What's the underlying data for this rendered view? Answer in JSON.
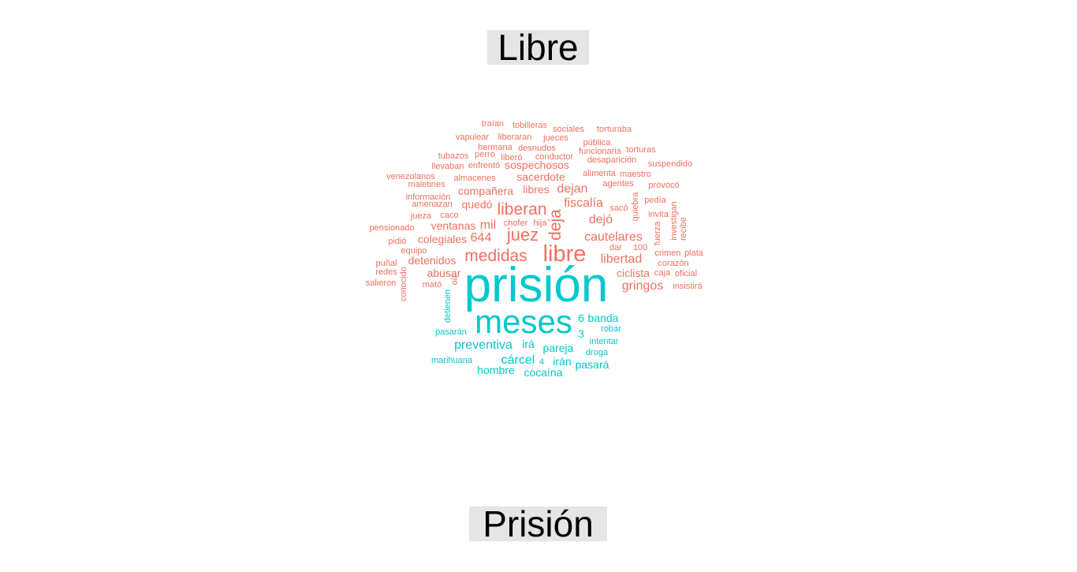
{
  "labels": {
    "top": "Libre",
    "bottom": "Prisión"
  },
  "colors": {
    "libre": "#F0705F",
    "prision": "#00C9CC",
    "label_bg": "#E5E5E5"
  },
  "chart_data": {
    "type": "wordcloud",
    "groups": [
      "Libre",
      "Prisión"
    ],
    "words": [
      {
        "word": "traían",
        "group": "Libre",
        "freq": 1
      },
      {
        "word": "tobilleras",
        "group": "Libre",
        "freq": 1
      },
      {
        "word": "sociales",
        "group": "Libre",
        "freq": 1
      },
      {
        "word": "torturaba",
        "group": "Libre",
        "freq": 1
      },
      {
        "word": "vapulear",
        "group": "Libre",
        "freq": 1
      },
      {
        "word": "liberaran",
        "group": "Libre",
        "freq": 1
      },
      {
        "word": "jueces",
        "group": "Libre",
        "freq": 1
      },
      {
        "word": "pública",
        "group": "Libre",
        "freq": 1
      },
      {
        "word": "hermana",
        "group": "Libre",
        "freq": 1
      },
      {
        "word": "desnudos",
        "group": "Libre",
        "freq": 1
      },
      {
        "word": "funcionaria",
        "group": "Libre",
        "freq": 1
      },
      {
        "word": "torturas",
        "group": "Libre",
        "freq": 1
      },
      {
        "word": "tubazos",
        "group": "Libre",
        "freq": 1
      },
      {
        "word": "perro",
        "group": "Libre",
        "freq": 1
      },
      {
        "word": "liberó",
        "group": "Libre",
        "freq": 1
      },
      {
        "word": "conductor",
        "group": "Libre",
        "freq": 1
      },
      {
        "word": "desaparición",
        "group": "Libre",
        "freq": 1
      },
      {
        "word": "llevaban",
        "group": "Libre",
        "freq": 1
      },
      {
        "word": "enfrentó",
        "group": "Libre",
        "freq": 1
      },
      {
        "word": "sospechosos",
        "group": "Libre",
        "freq": 2
      },
      {
        "word": "suspendido",
        "group": "Libre",
        "freq": 1
      },
      {
        "word": "venezolanos",
        "group": "Libre",
        "freq": 1
      },
      {
        "word": "almacenes",
        "group": "Libre",
        "freq": 1
      },
      {
        "word": "sacerdote",
        "group": "Libre",
        "freq": 2
      },
      {
        "word": "alimenta",
        "group": "Libre",
        "freq": 1
      },
      {
        "word": "maestro",
        "group": "Libre",
        "freq": 1
      },
      {
        "word": "maletines",
        "group": "Libre",
        "freq": 1
      },
      {
        "word": "agentes",
        "group": "Libre",
        "freq": 1
      },
      {
        "word": "provocó",
        "group": "Libre",
        "freq": 1
      },
      {
        "word": "información",
        "group": "Libre",
        "freq": 1
      },
      {
        "word": "compañera",
        "group": "Libre",
        "freq": 2
      },
      {
        "word": "libres",
        "group": "Libre",
        "freq": 2
      },
      {
        "word": "dejan",
        "group": "Libre",
        "freq": 3
      },
      {
        "word": "quiebra",
        "group": "Libre",
        "freq": 1
      },
      {
        "word": "pedía",
        "group": "Libre",
        "freq": 1
      },
      {
        "word": "amenazan",
        "group": "Libre",
        "freq": 1
      },
      {
        "word": "quedó",
        "group": "Libre",
        "freq": 2
      },
      {
        "word": "liberan",
        "group": "Libre",
        "freq": 4
      },
      {
        "word": "fiscalía",
        "group": "Libre",
        "freq": 3
      },
      {
        "word": "sacó",
        "group": "Libre",
        "freq": 1
      },
      {
        "word": "invita",
        "group": "Libre",
        "freq": 1
      },
      {
        "word": "investigan",
        "group": "Libre",
        "freq": 1
      },
      {
        "word": "jueza",
        "group": "Libre",
        "freq": 1
      },
      {
        "word": "caco",
        "group": "Libre",
        "freq": 1
      },
      {
        "word": "deja",
        "group": "Libre",
        "freq": 4
      },
      {
        "word": "dejó",
        "group": "Libre",
        "freq": 3
      },
      {
        "word": "chofer",
        "group": "Libre",
        "freq": 1
      },
      {
        "word": "hija",
        "group": "Libre",
        "freq": 1
      },
      {
        "word": "fuerza",
        "group": "Libre",
        "freq": 1
      },
      {
        "word": "recibe",
        "group": "Libre",
        "freq": 1
      },
      {
        "word": "pensionado",
        "group": "Libre",
        "freq": 1
      },
      {
        "word": "ventanas",
        "group": "Libre",
        "freq": 2
      },
      {
        "word": "mil",
        "group": "Libre",
        "freq": 3
      },
      {
        "word": "juez",
        "group": "Libre",
        "freq": 5
      },
      {
        "word": "cautelares",
        "group": "Libre",
        "freq": 3
      },
      {
        "word": "pidió",
        "group": "Libre",
        "freq": 1
      },
      {
        "word": "colegiales",
        "group": "Libre",
        "freq": 2
      },
      {
        "word": "644",
        "group": "Libre",
        "freq": 3
      },
      {
        "word": "libre",
        "group": "Libre",
        "freq": 6
      },
      {
        "word": "dar",
        "group": "Libre",
        "freq": 1
      },
      {
        "word": "100",
        "group": "Libre",
        "freq": 1
      },
      {
        "word": "crimen",
        "group": "Libre",
        "freq": 1
      },
      {
        "word": "plata",
        "group": "Libre",
        "freq": 1
      },
      {
        "word": "equipo",
        "group": "Libre",
        "freq": 1
      },
      {
        "word": "medidas",
        "group": "Libre",
        "freq": 4
      },
      {
        "word": "libertad",
        "group": "Libre",
        "freq": 3
      },
      {
        "word": "puñal",
        "group": "Libre",
        "freq": 1
      },
      {
        "word": "detenidos",
        "group": "Libre",
        "freq": 2
      },
      {
        "word": "corazón",
        "group": "Libre",
        "freq": 1
      },
      {
        "word": "redes",
        "group": "Libre",
        "freq": 1
      },
      {
        "word": "abusar",
        "group": "Libre",
        "freq": 2
      },
      {
        "word": "ciclista",
        "group": "Libre",
        "freq": 2
      },
      {
        "word": "caja",
        "group": "Libre",
        "freq": 1
      },
      {
        "word": "oficial",
        "group": "Libre",
        "freq": 1
      },
      {
        "word": "salieron",
        "group": "Libre",
        "freq": 1
      },
      {
        "word": "conocido",
        "group": "Libre",
        "freq": 1
      },
      {
        "word": "oír",
        "group": "Libre",
        "freq": 1
      },
      {
        "word": "mató",
        "group": "Libre",
        "freq": 1
      },
      {
        "word": "gringos",
        "group": "Libre",
        "freq": 3
      },
      {
        "word": "insistirá",
        "group": "Libre",
        "freq": 1
      },
      {
        "word": "prisión",
        "group": "Prisión",
        "freq": 10
      },
      {
        "word": "meses",
        "group": "Prisión",
        "freq": 7
      },
      {
        "word": "detienen",
        "group": "Prisión",
        "freq": 1
      },
      {
        "word": "6",
        "group": "Prisión",
        "freq": 2
      },
      {
        "word": "banda",
        "group": "Prisión",
        "freq": 2
      },
      {
        "word": "robar",
        "group": "Prisión",
        "freq": 1
      },
      {
        "word": "pasarán",
        "group": "Prisión",
        "freq": 1
      },
      {
        "word": "3",
        "group": "Prisión",
        "freq": 2
      },
      {
        "word": "intentar",
        "group": "Prisión",
        "freq": 1
      },
      {
        "word": "preventiva",
        "group": "Prisión",
        "freq": 3
      },
      {
        "word": "irá",
        "group": "Prisión",
        "freq": 2
      },
      {
        "word": "pareja",
        "group": "Prisión",
        "freq": 2
      },
      {
        "word": "droga",
        "group": "Prisión",
        "freq": 1
      },
      {
        "word": "marihuana",
        "group": "Prisión",
        "freq": 1
      },
      {
        "word": "cárcel",
        "group": "Prisión",
        "freq": 3
      },
      {
        "word": "4",
        "group": "Prisión",
        "freq": 1
      },
      {
        "word": "irán",
        "group": "Prisión",
        "freq": 2
      },
      {
        "word": "pasará",
        "group": "Prisión",
        "freq": 2
      },
      {
        "word": "hombre",
        "group": "Prisión",
        "freq": 2
      },
      {
        "word": "cocaína",
        "group": "Prisión",
        "freq": 2
      }
    ]
  }
}
